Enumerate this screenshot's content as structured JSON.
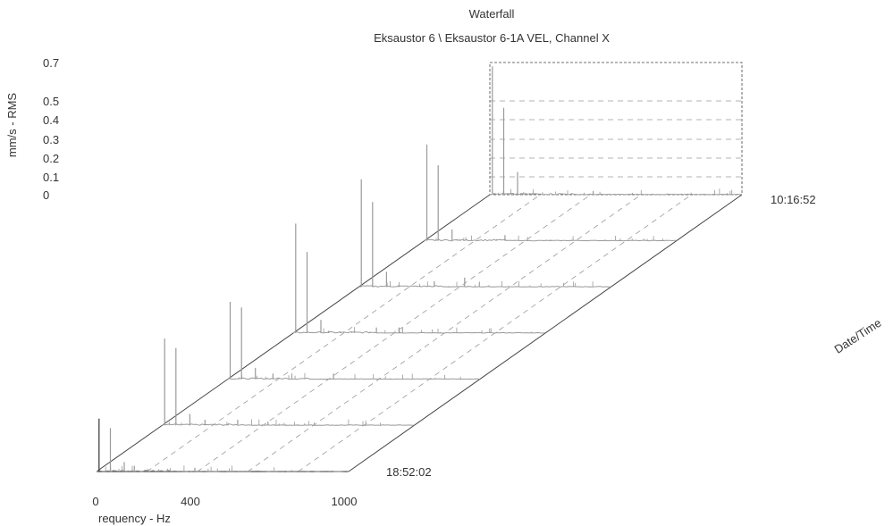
{
  "chart_data": {
    "type": "waterfall",
    "title": "Waterfall",
    "subtitle": "Eksaustor 6 \\ Eksaustor 6-1A VEL, Channel X",
    "xlabel": "requency - Hz",
    "ylabel": "mm/s - RMS",
    "zlabel": "Date/Time",
    "xlim": [
      0,
      1000
    ],
    "ylim": [
      0,
      0.7
    ],
    "x_tick_labels": [
      "0",
      "400",
      "1000"
    ],
    "y_tick_labels": [
      "0.7",
      "0.5",
      "0.4",
      "0.3",
      "0.2",
      "0.1",
      "0"
    ],
    "time_labels": {
      "first": "18:52:02",
      "last": "10:16:52"
    },
    "grid": true,
    "colors": {
      "trace": "#9a9a9a",
      "axis": "#444444",
      "grid": "#9a9a9a",
      "text": "#333333"
    },
    "series": [
      {
        "index": 0,
        "peaks": [
          {
            "x": 10,
            "y": 0.28
          },
          {
            "x": 55,
            "y": 0.23
          },
          {
            "x": 110,
            "y": 0.05
          },
          {
            "x": 150,
            "y": 0.03
          },
          {
            "x": 390,
            "y": 0.02
          }
        ]
      },
      {
        "index": 1,
        "peaks": [
          {
            "x": 10,
            "y": 0.46
          },
          {
            "x": 55,
            "y": 0.41
          },
          {
            "x": 110,
            "y": 0.06
          },
          {
            "x": 170,
            "y": 0.03
          },
          {
            "x": 300,
            "y": 0.03
          },
          {
            "x": 420,
            "y": 0.02
          }
        ]
      },
      {
        "index": 2,
        "peaks": [
          {
            "x": 10,
            "y": 0.41
          },
          {
            "x": 55,
            "y": 0.38
          },
          {
            "x": 110,
            "y": 0.06
          },
          {
            "x": 180,
            "y": 0.03
          },
          {
            "x": 420,
            "y": 0.03
          }
        ]
      },
      {
        "index": 3,
        "peaks": [
          {
            "x": 10,
            "y": 0.58
          },
          {
            "x": 55,
            "y": 0.43
          },
          {
            "x": 110,
            "y": 0.07
          },
          {
            "x": 330,
            "y": 0.03
          },
          {
            "x": 420,
            "y": 0.03
          }
        ]
      },
      {
        "index": 4,
        "peaks": [
          {
            "x": 10,
            "y": 0.57
          },
          {
            "x": 55,
            "y": 0.45
          },
          {
            "x": 110,
            "y": 0.08
          },
          {
            "x": 300,
            "y": 0.03
          },
          {
            "x": 420,
            "y": 0.05
          }
        ]
      },
      {
        "index": 5,
        "peaks": [
          {
            "x": 10,
            "y": 0.51
          },
          {
            "x": 55,
            "y": 0.4
          },
          {
            "x": 110,
            "y": 0.06
          },
          {
            "x": 320,
            "y": 0.03
          }
        ]
      },
      {
        "index": 6,
        "peaks": [
          {
            "x": 10,
            "y": 0.68
          },
          {
            "x": 55,
            "y": 0.46
          },
          {
            "x": 110,
            "y": 0.12
          },
          {
            "x": 410,
            "y": 0.02
          }
        ]
      }
    ]
  }
}
